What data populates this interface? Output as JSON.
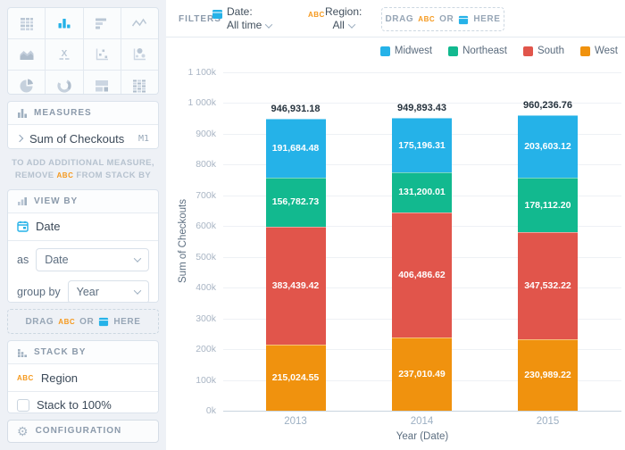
{
  "sidebar": {
    "chart_types": [
      "data-table",
      "bar-chart",
      "horizontal-bars",
      "line-chart",
      "area-chart",
      "kpi",
      "scatter",
      "bubble",
      "pie",
      "donut",
      "treemap",
      "pivot-table"
    ],
    "selected_chart_type": "bar-chart",
    "measures": {
      "header": "MEASURES",
      "item": "Sum of Checkouts",
      "badge": "M1",
      "note_line1": "TO ADD ADDITIONAL MEASURE,",
      "note_remove": "REMOVE",
      "note_abc": "ABC",
      "note_rest": "FROM STACK BY"
    },
    "view_by": {
      "header": "VIEW BY",
      "field": "Date",
      "as_label": "as",
      "as_value": "Date",
      "group_label": "group by",
      "group_value": "Year",
      "dropzone": {
        "drag": "DRAG",
        "abc": "ABC",
        "or": "OR",
        "here": "HERE"
      }
    },
    "stack_by": {
      "header": "STACK BY",
      "abc": "ABC",
      "field": "Region",
      "checkbox_label": "Stack to 100%",
      "checked": false
    },
    "configuration_label": "CONFIGURATION"
  },
  "filters": {
    "label": "FILTERS",
    "date": {
      "label": "Date:",
      "value": "All time"
    },
    "region": {
      "abc": "ABC",
      "label": "Region:",
      "value": "All"
    },
    "dropzone": {
      "drag": "DRAG",
      "abc": "ABC",
      "or": "OR",
      "here": "HERE"
    }
  },
  "chart_data": {
    "type": "bar",
    "stacked": true,
    "categories": [
      "2013",
      "2014",
      "2015"
    ],
    "series": [
      {
        "name": "Midwest",
        "color": "#25b2e8",
        "values": [
          191684.48,
          175196.31,
          203603.12
        ]
      },
      {
        "name": "Northeast",
        "color": "#12b98f",
        "values": [
          156782.73,
          131200.01,
          178112.2
        ]
      },
      {
        "name": "South",
        "color": "#e1554b",
        "values": [
          383439.42,
          406486.62,
          347532.22
        ]
      },
      {
        "name": "West",
        "color": "#f0920e",
        "values": [
          215024.55,
          237010.49,
          230989.22
        ]
      }
    ],
    "totals": [
      946931.18,
      949893.43,
      960236.76
    ],
    "xlabel": "Year (Date)",
    "ylabel": "Sum of Checkouts",
    "ylim": [
      0,
      1100000
    ],
    "ytick_step": 100000,
    "ytick_labels": [
      "0k",
      "100k",
      "200k",
      "300k",
      "400k",
      "500k",
      "600k",
      "700k",
      "800k",
      "900k",
      "1 000k",
      "1 100k"
    ],
    "legend_position": "top-right",
    "grid": true,
    "stack_order_bottom_to_top": [
      "West",
      "South",
      "Northeast",
      "Midwest"
    ]
  },
  "colors": {
    "accent_blue": "#25b2e8",
    "accent_orange": "#f5991e",
    "sidebar_bg": "#eef1f6",
    "grid_line": "#eef1f5",
    "axis_line": "#c9d5df"
  }
}
